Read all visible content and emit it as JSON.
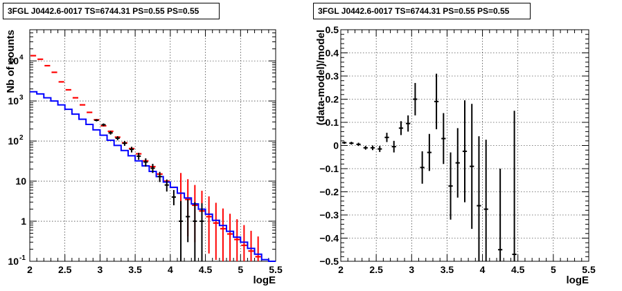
{
  "chart_data": [
    {
      "type": "scatter",
      "title": "3FGL J0442.6-0017 TS=6744.31 PS=0.55 PS=0.55",
      "xlabel": "logE",
      "ylabel": "Nb of counts",
      "xlim": [
        2,
        5.5
      ],
      "ylim": [
        0.1,
        60000
      ],
      "yscale": "log",
      "grid": true,
      "xticks": [
        "2",
        "2.5",
        "3",
        "3.5",
        "4",
        "4.5",
        "5",
        "5.5"
      ],
      "yticks": [
        {
          "value": 0.1,
          "label": "10",
          "exp": "-1"
        },
        {
          "value": 1,
          "label": "1",
          "exp": ""
        },
        {
          "value": 10,
          "label": "10",
          "exp": ""
        },
        {
          "value": 100,
          "label": "10",
          "exp": "2"
        },
        {
          "value": 1000,
          "label": "10",
          "exp": "3"
        },
        {
          "value": 10000,
          "label": "10",
          "exp": "4"
        }
      ],
      "bin_width": 0.1,
      "series": [
        {
          "color": "#ff0000",
          "points": [
            {
              "x": 2.05,
              "y": 13500
            },
            {
              "x": 2.15,
              "y": 11000
            },
            {
              "x": 2.25,
              "y": 7600
            },
            {
              "x": 2.35,
              "y": 5200
            },
            {
              "x": 2.45,
              "y": 3000
            },
            {
              "x": 2.55,
              "y": 1900
            },
            {
              "x": 2.65,
              "y": 1200
            },
            {
              "x": 2.75,
              "y": 800
            },
            {
              "x": 2.85,
              "y": 520
            },
            {
              "x": 2.95,
              "y": 340
            },
            {
              "x": 3.05,
              "y": 240
            },
            {
              "x": 3.15,
              "y": 175
            },
            {
              "x": 3.25,
              "y": 125
            },
            {
              "x": 3.35,
              "y": 90
            },
            {
              "x": 3.45,
              "y": 65
            },
            {
              "x": 3.55,
              "y": 48
            },
            {
              "x": 3.65,
              "y": 32
            },
            {
              "x": 3.75,
              "y": 23
            },
            {
              "x": 3.85,
              "y": 15
            },
            {
              "x": 3.95,
              "y": 10
            },
            {
              "x": 4.05,
              "y": 7
            },
            {
              "x": 4.15,
              "y": 5
            },
            {
              "x": 4.25,
              "y": 3.5
            },
            {
              "x": 4.35,
              "y": 2.5
            },
            {
              "x": 4.45,
              "y": 1.8
            },
            {
              "x": 4.55,
              "y": 1.3
            },
            {
              "x": 4.65,
              "y": 0.9
            },
            {
              "x": 4.75,
              "y": 0.65
            },
            {
              "x": 4.85,
              "y": 0.48
            },
            {
              "x": 4.95,
              "y": 0.35
            },
            {
              "x": 5.05,
              "y": 0.25
            },
            {
              "x": 5.15,
              "y": 0.18
            },
            {
              "x": 5.25,
              "y": 0.13
            }
          ]
        },
        {
          "color": "#000000",
          "points": [
            {
              "x": 2.95,
              "y": 330,
              "lo": 310,
              "hi": 352
            },
            {
              "x": 3.05,
              "y": 255,
              "lo": 235,
              "hi": 275
            },
            {
              "x": 3.15,
              "y": 160,
              "lo": 145,
              "hi": 178
            },
            {
              "x": 3.25,
              "y": 118,
              "lo": 105,
              "hi": 132
            },
            {
              "x": 3.35,
              "y": 88,
              "lo": 76,
              "hi": 100
            },
            {
              "x": 3.45,
              "y": 62,
              "lo": 52,
              "hi": 72
            },
            {
              "x": 3.55,
              "y": 42,
              "lo": 34,
              "hi": 51
            },
            {
              "x": 3.65,
              "y": 30,
              "lo": 23,
              "hi": 37
            },
            {
              "x": 3.75,
              "y": 21,
              "lo": 16,
              "hi": 27
            },
            {
              "x": 3.85,
              "y": 13,
              "lo": 9.5,
              "hi": 17
            },
            {
              "x": 3.95,
              "y": 8,
              "lo": 5.5,
              "hi": 11
            },
            {
              "x": 4.05,
              "y": 4,
              "lo": 2.5,
              "hi": 6
            },
            {
              "x": 4.15,
              "y": 1,
              "lo": 0.1,
              "hi": 3.2
            },
            {
              "x": 4.25,
              "y": 1.3,
              "lo": 0.3,
              "hi": 3.5
            },
            {
              "x": 4.35,
              "y": 1,
              "lo": 0.1,
              "hi": 3
            },
            {
              "x": 4.45,
              "y": 1,
              "lo": 0.1,
              "hi": 2.8
            }
          ]
        },
        {
          "color": "#0000ff",
          "step": true,
          "values": [
            1700,
            1500,
            1200,
            1000,
            800,
            620,
            470,
            350,
            260,
            190,
            140,
            105,
            78,
            58,
            43,
            32,
            24,
            17.5,
            13,
            9.5,
            7,
            5,
            3.8,
            2.7,
            2,
            1.5,
            1.05,
            0.78,
            0.56,
            0.4,
            0.3,
            0.21,
            0.15,
            0.11,
            0.1
          ]
        }
      ]
    },
    {
      "type": "scatter",
      "title": "3FGL J0442.6-0017 TS=6744.31 PS=0.55 PS=0.55",
      "xlabel": "logE",
      "ylabel": "(data-model)/model",
      "xlim": [
        2,
        5.5
      ],
      "ylim": [
        -0.5,
        0.5
      ],
      "grid": true,
      "xticks": [
        "2",
        "2.5",
        "3",
        "3.5",
        "4",
        "4.5",
        "5",
        "5.5"
      ],
      "yticks": [
        "−0.5",
        "−0.4",
        "−0.3",
        "−0.2",
        "−0.1",
        "0",
        "0.1",
        "0.2",
        "0.3",
        "0.4",
        "0.5"
      ],
      "bin_width": 0.1,
      "series": [
        {
          "color": "#000000",
          "points": [
            {
              "x": 2.05,
              "y": 0.012,
              "err": 0.005
            },
            {
              "x": 2.15,
              "y": 0.01,
              "err": 0.006
            },
            {
              "x": 2.25,
              "y": 0.005,
              "err": 0.007
            },
            {
              "x": 2.35,
              "y": -0.01,
              "err": 0.008
            },
            {
              "x": 2.45,
              "y": -0.01,
              "err": 0.01
            },
            {
              "x": 2.55,
              "y": -0.015,
              "err": 0.013
            },
            {
              "x": 2.65,
              "y": 0.035,
              "err": 0.02
            },
            {
              "x": 2.75,
              "y": -0.005,
              "err": 0.025
            },
            {
              "x": 2.85,
              "y": 0.075,
              "err": 0.03
            },
            {
              "x": 2.95,
              "y": 0.095,
              "err": 0.035
            },
            {
              "x": 3.05,
              "y": 0.2,
              "err": 0.07
            },
            {
              "x": 3.15,
              "y": -0.095,
              "err": 0.07
            },
            {
              "x": 3.25,
              "y": -0.03,
              "err": 0.08
            },
            {
              "x": 3.35,
              "y": 0.19,
              "err": 0.12
            },
            {
              "x": 3.45,
              "y": 0.03,
              "err": 0.11
            },
            {
              "x": 3.55,
              "y": -0.175,
              "err": 0.145
            },
            {
              "x": 3.65,
              "y": -0.075,
              "err": 0.15
            },
            {
              "x": 3.75,
              "y": -0.025,
              "err": 0.22
            },
            {
              "x": 3.85,
              "y": -0.09,
              "err": 0.27
            },
            {
              "x": 3.95,
              "y": -0.26,
              "err": 0.3
            },
            {
              "x": 4.05,
              "y": -0.275,
              "err": 0.3
            },
            {
              "x": 4.25,
              "y": -0.45,
              "err": 0.35
            },
            {
              "x": 4.45,
              "y": -0.47,
              "err": 0.62
            }
          ]
        }
      ]
    }
  ]
}
